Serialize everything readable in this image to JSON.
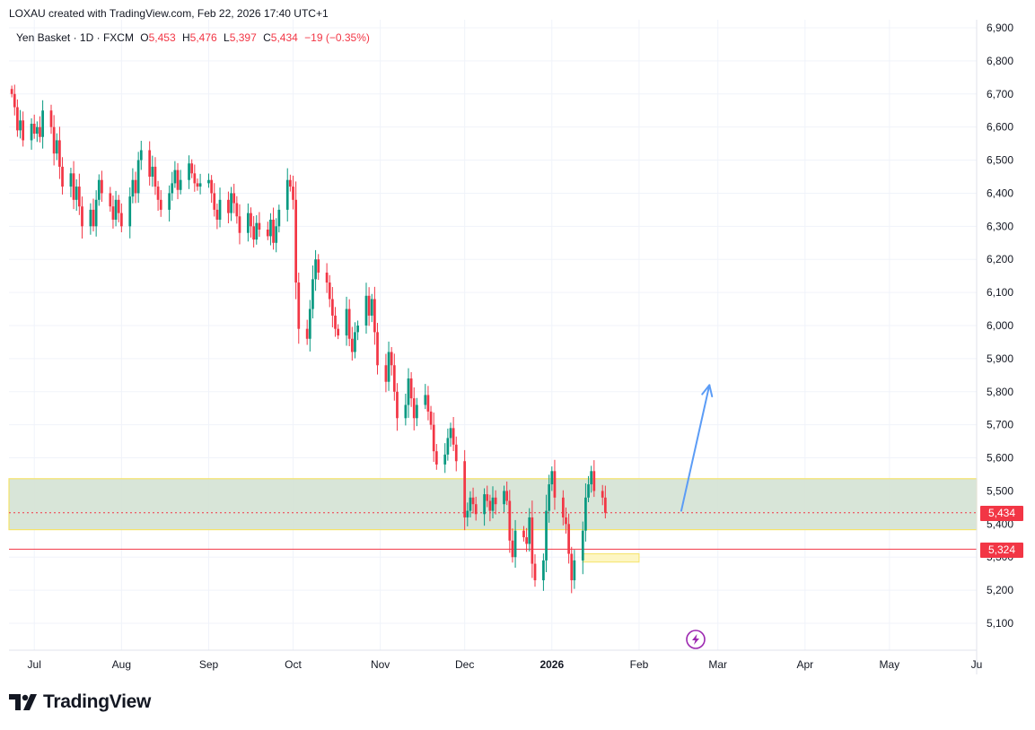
{
  "header": {
    "credit": "LOXAU created with TradingView.com, Feb 22, 2026 17:40 UTC+1"
  },
  "legend": {
    "symbol": "Yen Basket · 1D · FXCM",
    "open_label": "O",
    "open": "5,453",
    "high_label": "H",
    "high": "5,476",
    "low_label": "L",
    "low": "5,397",
    "close_label": "C",
    "close": "5,434",
    "change": "−19 (−0.35%)"
  },
  "price_labels": {
    "last": "5,434",
    "level": "5,324"
  },
  "footer": {
    "brand": "TradingView"
  },
  "colors": {
    "up": "#089981",
    "down": "#f23645",
    "zone_fill": "#d4e2d4",
    "zone_border": "#f5e36a",
    "arrow": "#5b9cf6",
    "grid": "#f0f3fa"
  },
  "chart_data": {
    "type": "candlestick",
    "y_ticks": [
      "6,900",
      "6,800",
      "6,700",
      "6,600",
      "6,500",
      "6,400",
      "6,300",
      "6,200",
      "6,100",
      "6,000",
      "5,900",
      "5,800",
      "5,700",
      "5,600",
      "5,500",
      "5,400",
      "5,300",
      "5,200",
      "5,100"
    ],
    "x_ticks": [
      {
        "label": "Jul",
        "date": "2025-07-01"
      },
      {
        "label": "Aug",
        "date": "2025-08-01"
      },
      {
        "label": "Sep",
        "date": "2025-09-01"
      },
      {
        "label": "Oct",
        "date": "2025-10-01"
      },
      {
        "label": "Nov",
        "date": "2025-11-01"
      },
      {
        "label": "Dec",
        "date": "2025-12-01"
      },
      {
        "label": "2026",
        "date": "2026-01-01",
        "bold": true
      },
      {
        "label": "Feb",
        "date": "2026-02-01"
      },
      {
        "label": "Mar",
        "date": "2026-03-01"
      },
      {
        "label": "Apr",
        "date": "2026-04-01"
      },
      {
        "label": "May",
        "date": "2026-05-01"
      },
      {
        "label": "Ju",
        "date": "2026-06-01"
      }
    ],
    "ylim": [
      5050,
      6930
    ],
    "xlim": [
      "2025-06-22",
      "2026-06-01"
    ],
    "start_date": "2025-06-23",
    "closes": [
      6700,
      6660,
      6590,
      6620,
      6560,
      6610,
      6580,
      6600,
      6570,
      6650,
      6600,
      6520,
      6560,
      6480,
      6420,
      6460,
      6380,
      6420,
      6360,
      6300,
      6350,
      6300,
      6380,
      6440,
      6400,
      6360,
      6320,
      6380,
      6340,
      6300,
      6390,
      6440,
      6400,
      6500,
      6530,
      6450,
      6480,
      6420,
      6380,
      6350,
      6400,
      6430,
      6470,
      6410,
      6440,
      6490,
      6460,
      6430,
      6420,
      6430,
      6440,
      6400,
      6350,
      6320,
      6380,
      6340,
      6400,
      6370,
      6330,
      6280,
      6340,
      6300,
      6260,
      6310,
      6290,
      6270,
      6320,
      6250,
      6300,
      6350,
      6440,
      6420,
      6380,
      6130,
      5990,
      5960,
      6050,
      6140,
      6200,
      6160,
      6130,
      6080,
      6030,
      5990,
      5970,
      6050,
      5960,
      5920,
      5980,
      6000,
      6090,
      6030,
      6080,
      5980,
      5880,
      5830,
      5920,
      5880,
      5800,
      5720,
      5760,
      5840,
      5780,
      5720,
      5760,
      5790,
      5740,
      5700,
      5620,
      5580,
      5610,
      5660,
      5690,
      5640,
      5590,
      5420,
      5440,
      5480,
      5460,
      5430,
      5490,
      5470,
      5440,
      5480,
      5460,
      5500,
      5470,
      5350,
      5300,
      5380,
      5360,
      5340,
      5420,
      5280,
      5230,
      5290,
      5440,
      5520,
      5560,
      5480,
      5420,
      5400,
      5310,
      5230,
      5290,
      5380,
      5480,
      5520,
      5560,
      5500,
      5480,
      5434
    ],
    "candle_start": "2025-06-22",
    "overlays": {
      "zone_rect": {
        "date_from": "2025-06-22",
        "date_to": "2026-06-01",
        "y_from": 5383,
        "y_to": 5537
      },
      "small_rect": {
        "date_from": "2026-01-12",
        "date_to": "2026-02-01",
        "y_from": 5285,
        "y_to": 5310
      },
      "last_price_line": 5434,
      "level_line": 5324,
      "arrow": {
        "from_date": "2026-02-16",
        "from_y": 5440,
        "to_date": "2026-02-26",
        "to_y": 5820
      }
    }
  }
}
